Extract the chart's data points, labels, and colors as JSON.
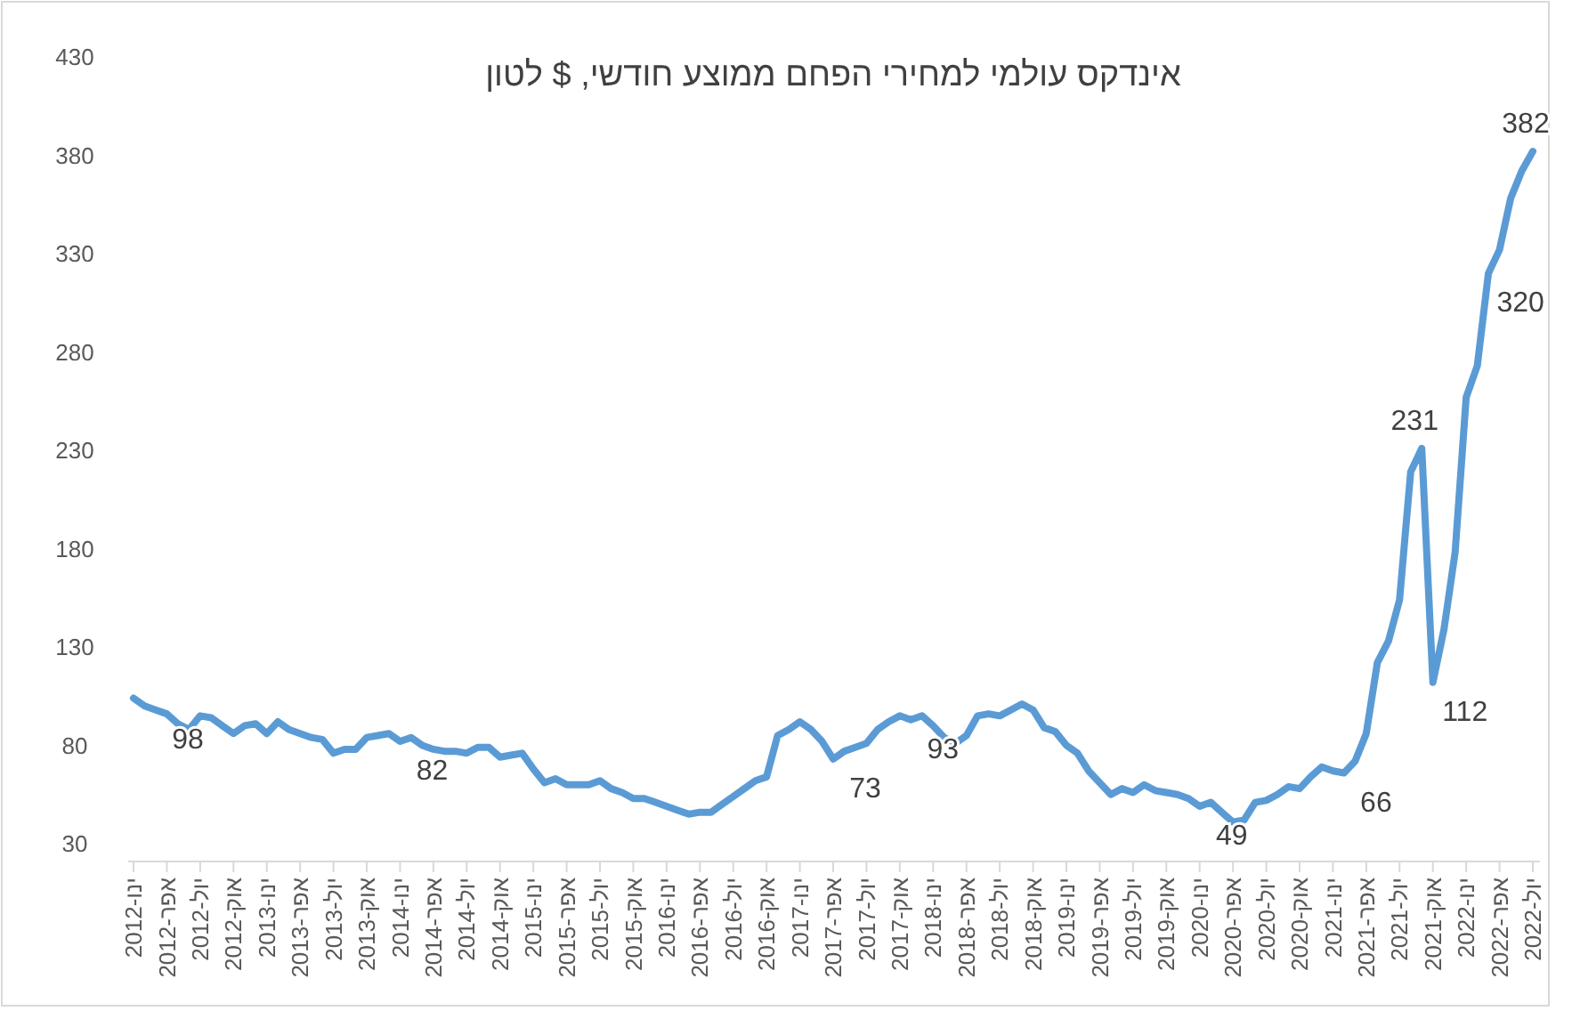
{
  "chart_data": {
    "type": "line",
    "title": "אינדקס עולמי למחירי הפחם ממוצע חודשי, $ לטון",
    "categories": [
      "ינו-2012",
      null,
      null,
      "אפר-2012",
      null,
      null,
      "יול-2012",
      null,
      null,
      "אוק-2012",
      null,
      null,
      "ינו-2013",
      null,
      null,
      "אפר-2013",
      null,
      null,
      "יול-2013",
      null,
      null,
      "אוק-2013",
      null,
      null,
      "ינו-2014",
      null,
      null,
      "אפר-2014",
      null,
      null,
      "יול-2014",
      null,
      null,
      "אוק-2014",
      null,
      null,
      "ינו-2015",
      null,
      null,
      "אפר-2015",
      null,
      null,
      "יול-2015",
      null,
      null,
      "אוק-2015",
      null,
      null,
      "ינו-2016",
      null,
      null,
      "אפר-2016",
      null,
      null,
      "יול-2016",
      null,
      null,
      "אוק-2016",
      null,
      null,
      "ינו-2017",
      null,
      null,
      "אפר-2017",
      null,
      null,
      "יול-2017",
      null,
      null,
      "אוק-2017",
      null,
      null,
      "ינו-2018",
      null,
      null,
      "אפר-2018",
      null,
      null,
      "יול-2018",
      null,
      null,
      "אוק-2018",
      null,
      null,
      "ינו-2019",
      null,
      null,
      "אפר-2019",
      null,
      null,
      "יול-2019",
      null,
      null,
      "אוק-2019",
      null,
      null,
      "ינו-2020",
      null,
      null,
      "אפר-2020",
      null,
      null,
      "יול-2020",
      null,
      null,
      "אוק-2020",
      null,
      null,
      "ינו-2021",
      null,
      null,
      "אפר-2021",
      null,
      null,
      "יול-2021",
      null,
      null,
      "אוק-2021",
      null,
      null,
      "ינו-2022",
      null,
      null,
      "אפר-2022",
      null,
      null,
      "יול-2022"
    ],
    "series": [
      {
        "color": "#5b9bd5",
        "values": [
          104,
          100,
          98,
          96,
          91,
          88,
          95,
          94,
          90,
          86,
          90,
          91,
          86,
          92,
          88,
          86,
          84,
          83,
          76,
          78,
          78,
          84,
          85,
          86,
          82,
          84,
          80,
          78,
          77,
          77,
          76,
          79,
          79,
          74,
          75,
          76,
          68,
          61,
          63,
          60,
          60,
          60,
          62,
          58,
          56,
          53,
          53,
          51,
          49,
          47,
          45,
          46,
          46,
          50,
          54,
          58,
          62,
          64,
          85,
          88,
          92,
          88,
          82,
          73,
          77,
          79,
          81,
          88,
          92,
          95,
          93,
          95,
          90,
          84,
          81,
          85,
          95,
          96,
          95,
          98,
          101,
          98,
          89,
          87,
          80,
          76,
          67,
          61,
          55,
          58,
          56,
          60,
          57,
          56,
          55,
          53,
          49,
          51,
          46,
          41,
          42,
          51,
          52,
          55,
          59,
          58,
          64,
          69,
          67,
          66,
          72,
          86,
          122,
          133,
          154,
          219,
          231,
          112,
          139,
          178,
          257,
          273,
          320,
          332,
          358,
          372,
          382
        ],
        "value_labels": [
          null,
          null,
          "98",
          null,
          null,
          null,
          null,
          null,
          null,
          null,
          null,
          null,
          null,
          null,
          null,
          null,
          null,
          null,
          null,
          null,
          null,
          null,
          null,
          null,
          "82",
          null,
          null,
          null,
          null,
          null,
          null,
          null,
          null,
          null,
          null,
          null,
          null,
          null,
          null,
          null,
          null,
          null,
          null,
          null,
          null,
          null,
          null,
          null,
          null,
          null,
          null,
          null,
          null,
          null,
          null,
          null,
          null,
          null,
          null,
          null,
          null,
          null,
          null,
          "73",
          null,
          null,
          null,
          null,
          null,
          null,
          "93",
          null,
          null,
          null,
          null,
          null,
          null,
          null,
          null,
          null,
          null,
          null,
          null,
          null,
          null,
          null,
          null,
          null,
          null,
          null,
          null,
          null,
          null,
          null,
          null,
          null,
          "49",
          null,
          null,
          null,
          null,
          null,
          null,
          null,
          null,
          null,
          null,
          null,
          null,
          "66",
          null,
          null,
          null,
          null,
          null,
          null,
          "231",
          "112",
          null,
          null,
          null,
          null,
          "320",
          null,
          null,
          null,
          "382"
        ]
      }
    ],
    "ylim": [
      30,
      430
    ],
    "yticks": [
      30,
      80,
      130,
      180,
      230,
      280,
      330,
      380,
      430
    ],
    "grid": false,
    "marker": "none",
    "line_style": "solid"
  }
}
